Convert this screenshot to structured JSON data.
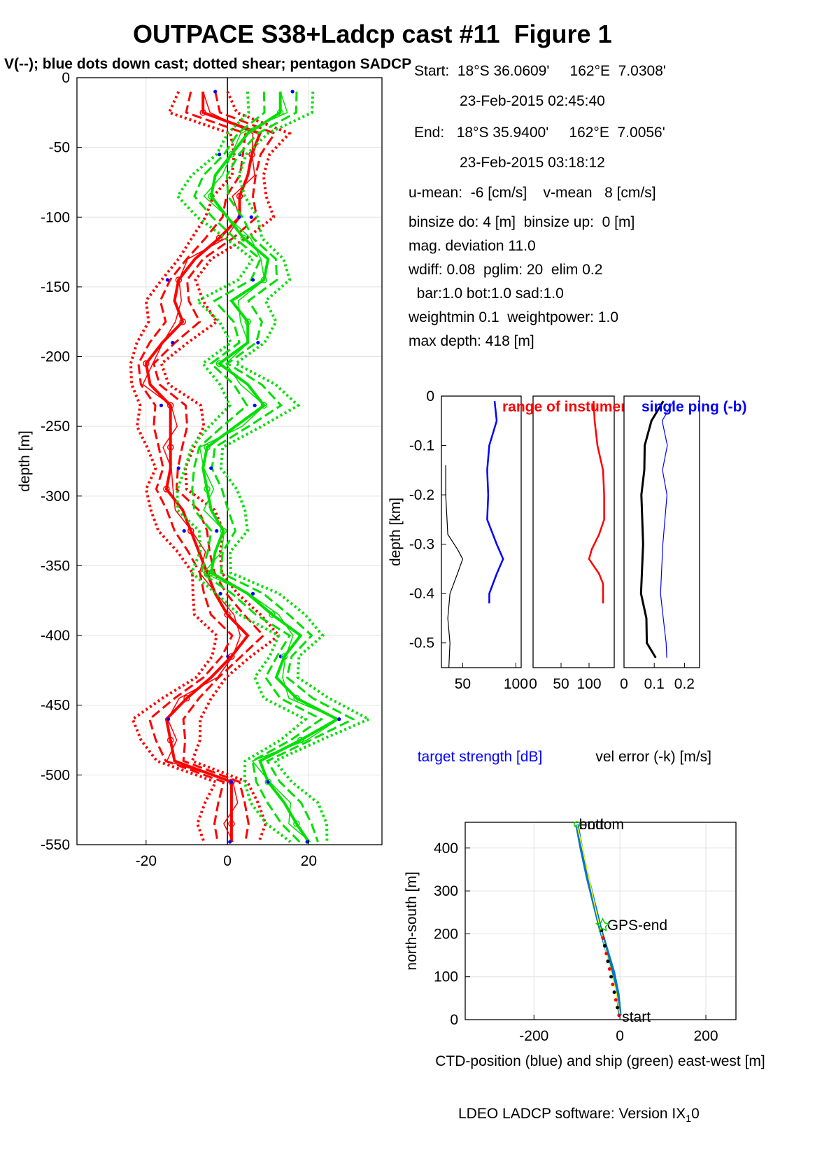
{
  "title": "OUTPACE S38+Ladcp cast #11  Figure 1",
  "subtitle": "V(--); blue dots down cast; dotted shear; pentagon SADCP",
  "info": {
    "start_pos": "Start:  18°S 36.0609'     162°E  7.0308'",
    "start_time": "23-Feb-2015 02:45:40",
    "end_pos": "End:   18°S 35.9400'     162°E  7.0056'",
    "end_time": "23-Feb-2015 03:18:12",
    "means": "u-mean:  -6 [cm/s]    v-mean   8 [cm/s]",
    "binsize": "binsize do: 4 [m]  binsize up:  0 [m]",
    "magdev": "mag. deviation 11.0",
    "wdiff": "wdiff: 0.08  pglim: 20  elim 0.2",
    "bar": "  bar:1.0 bot:1.0 sad:1.0",
    "weight": "weightmin 0.1  weightpower: 1.0",
    "maxdepth": "max depth: 418 [m]"
  },
  "footer": {
    "software": "LDEO LADCP software: Version IX",
    "sub": "1",
    "tail": "0"
  },
  "colors": {
    "u": "#ff0000",
    "v": "#00e000",
    "dots": "#0000ff",
    "shear_black": "#000000"
  },
  "chart_data": [
    {
      "type": "line",
      "name": "velocity profiles",
      "ylabel": "depth [m]",
      "xlabel": "",
      "xlim": [
        -37,
        38
      ],
      "ylim": [
        -550,
        0
      ],
      "x_ticks": [
        -20,
        0,
        20
      ],
      "y_ticks": [
        0,
        -50,
        -100,
        -150,
        -200,
        -250,
        -300,
        -350,
        -400,
        -450,
        -500,
        -550
      ],
      "grid": true,
      "depth": [
        -10,
        -25,
        -40,
        -55,
        -70,
        -85,
        -100,
        -115,
        -130,
        -145,
        -160,
        -175,
        -190,
        -205,
        -220,
        -235,
        -250,
        -265,
        -280,
        -295,
        -310,
        -325,
        -340,
        -355,
        -370,
        -385,
        -400,
        -415,
        -430,
        -445,
        -460,
        -475,
        -490,
        -505,
        -520,
        -535,
        -548
      ],
      "series": [
        {
          "name": "u",
          "color": "#ff0000",
          "values": [
            -6,
            -6,
            8,
            6,
            5,
            3,
            3,
            -2,
            -8,
            -12,
            -13,
            -11,
            -16,
            -20,
            -19,
            -14,
            -14,
            -14,
            -14,
            -15,
            -11,
            -9,
            -7,
            -5,
            -3,
            0,
            5,
            1,
            -4,
            -10,
            -15,
            -14,
            -13,
            1,
            1,
            1,
            1
          ]
        },
        {
          "name": "v",
          "color": "#00e000",
          "values": [
            13,
            13,
            5,
            1,
            -3,
            -4,
            0,
            4,
            10,
            9,
            1,
            5,
            5,
            -2,
            5,
            9,
            2,
            -5,
            -6,
            -5,
            -4,
            -1,
            -3,
            -4,
            5,
            11,
            18,
            14,
            12,
            17,
            27,
            18,
            8,
            10,
            14,
            17,
            20
          ]
        }
      ]
    },
    {
      "type": "line",
      "name": "target strength",
      "ylabel": "depth [km]",
      "xlabel": "target strength [dB]",
      "xlim": [
        30,
        105
      ],
      "ylim": [
        -0.55,
        0
      ],
      "x_ticks": [
        50,
        100
      ],
      "y_ticks": [
        0,
        -0.1,
        -0.2,
        -0.3,
        -0.4,
        -0.5
      ],
      "depth": [
        -0.01,
        -0.05,
        -0.1,
        -0.15,
        -0.2,
        -0.25,
        -0.3,
        -0.33,
        -0.36,
        -0.4,
        -0.42
      ],
      "series": [
        {
          "name": "single ping (-b)",
          "color": "#0000ff",
          "values": [
            80,
            82,
            75,
            73,
            74,
            73,
            82,
            88,
            82,
            75,
            75
          ]
        },
        {
          "name": "range",
          "color": "#000000",
          "depth": [
            -0.14,
            -0.2,
            -0.28,
            -0.31,
            -0.33,
            -0.36,
            -0.4,
            -0.45,
            -0.5,
            -0.55
          ],
          "values": [
            34,
            34,
            36,
            45,
            50,
            45,
            38,
            36,
            38,
            37
          ]
        }
      ]
    },
    {
      "type": "line",
      "name": "range of instruments",
      "title_red": "range of instuments [m]",
      "xlim": [
        0,
        145
      ],
      "ylim": [
        -0.55,
        0
      ],
      "x_ticks": [
        0,
        50,
        100
      ],
      "depth": [
        -0.01,
        -0.05,
        -0.1,
        -0.15,
        -0.2,
        -0.25,
        -0.28,
        -0.31,
        -0.33,
        -0.36,
        -0.38,
        -0.42
      ],
      "series": [
        {
          "name": "range",
          "color": "#ff0000",
          "values": [
            108,
            110,
            115,
            125,
            127,
            127,
            118,
            105,
            100,
            118,
            125,
            125
          ]
        }
      ]
    },
    {
      "type": "line",
      "name": "vel error",
      "title_blue": "single ping (-b)",
      "xlabel": "vel error (-k) [m/s]",
      "xlim": [
        0,
        0.25
      ],
      "ylim": [
        -0.55,
        0
      ],
      "x_ticks": [
        0,
        0.1,
        0.2
      ],
      "depth": [
        -0.01,
        -0.05,
        -0.1,
        -0.15,
        -0.2,
        -0.3,
        -0.4,
        -0.45,
        -0.5,
        -0.53
      ],
      "series": [
        {
          "name": "vel error",
          "color": "#000000",
          "values": [
            0.13,
            0.09,
            0.07,
            0.065,
            0.06,
            0.06,
            0.06,
            0.07,
            0.08,
            0.1
          ]
        },
        {
          "name": "single ping",
          "color": "#0000ff",
          "values": [
            0.16,
            0.13,
            0.14,
            0.13,
            0.14,
            0.13,
            0.12,
            0.13,
            0.14,
            0.14
          ]
        }
      ]
    },
    {
      "type": "line",
      "name": "position",
      "xlabel": "CTD-position (blue) and ship (green) east-west [m]",
      "ylabel": "north-south [m]",
      "xlim": [
        -360,
        270
      ],
      "ylim": [
        0,
        460
      ],
      "x_ticks": [
        -200,
        0,
        200
      ],
      "y_ticks": [
        0,
        100,
        200,
        300,
        400
      ],
      "labels": {
        "start": "start",
        "end": "GPS-end",
        "bottom": "bottom",
        "end_top": "end"
      },
      "series": [
        {
          "name": "CTD",
          "color": "#0077cc",
          "x": [
            0,
            -5,
            -15,
            -30,
            -45,
            -60,
            -75,
            -90,
            -100
          ],
          "y": [
            10,
            60,
            110,
            160,
            210,
            270,
            330,
            400,
            455
          ]
        },
        {
          "name": "ship",
          "color": "#ffff00",
          "x": [
            0,
            -10,
            -25,
            -40,
            -55,
            -70,
            -85,
            -100
          ],
          "y": [
            10,
            70,
            130,
            190,
            250,
            320,
            390,
            455
          ]
        }
      ]
    }
  ]
}
